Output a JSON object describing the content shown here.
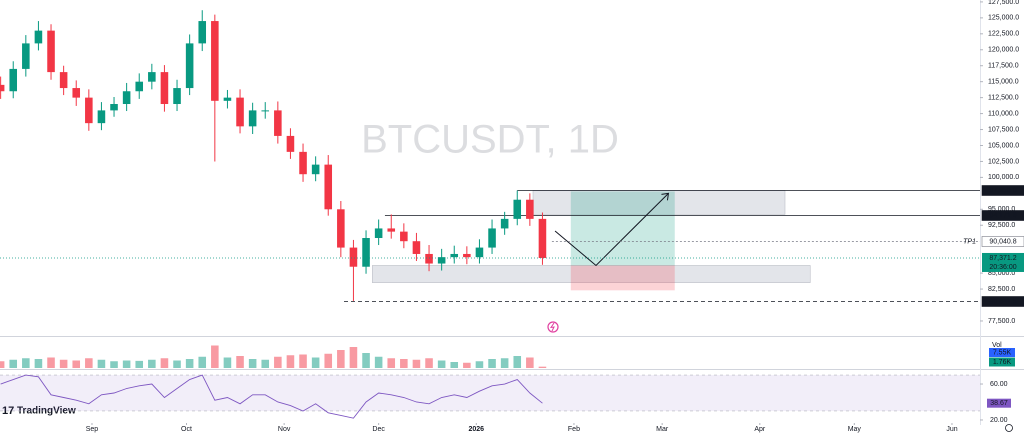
{
  "chart_data": {
    "type": "candlestick",
    "title": "BTCUSDT, 1D",
    "logo": "TradingView",
    "x": [
      2,
      6,
      10,
      14,
      18,
      22,
      26,
      30,
      34,
      38,
      42,
      46,
      50,
      54,
      58,
      62,
      66,
      70,
      74,
      78,
      82,
      86,
      90,
      94,
      98,
      102,
      106,
      110,
      114,
      118,
      122,
      126,
      130,
      134,
      138,
      142,
      146,
      150,
      154,
      158,
      162,
      166,
      170,
      174
    ],
    "open": [
      114500,
      113500,
      117000,
      121000,
      123000,
      116500,
      114000,
      112500,
      108500,
      110500,
      111500,
      113500,
      115000,
      116500,
      111500,
      114000,
      121000,
      124500,
      112000,
      112500,
      108000,
      110500,
      110500,
      106500,
      104000,
      100500,
      102000,
      95000,
      89000,
      86000,
      90500,
      92000,
      91500,
      90000,
      88000,
      86500,
      87500,
      88000,
      87500,
      89000,
      92000,
      93500,
      96500,
      93500
    ],
    "high": [
      115800,
      118200,
      122300,
      124500,
      124000,
      117500,
      115200,
      113800,
      111800,
      112600,
      114800,
      116300,
      117800,
      117600,
      115300,
      122400,
      126200,
      125500,
      113700,
      113800,
      111700,
      111800,
      111900,
      107700,
      105300,
      103300,
      103500,
      96300,
      90200,
      91700,
      93400,
      94200,
      92800,
      91300,
      89400,
      88800,
      89300,
      89200,
      90300,
      93400,
      94600,
      97950,
      97500,
      94500
    ],
    "low": [
      112300,
      112400,
      115800,
      119900,
      115300,
      112900,
      111200,
      107300,
      107400,
      109500,
      110400,
      112300,
      113800,
      110300,
      110400,
      112900,
      119800,
      102500,
      110800,
      106900,
      106800,
      109200,
      105300,
      102900,
      99300,
      99400,
      94000,
      87500,
      80641.5,
      84900,
      89400,
      90400,
      88900,
      86900,
      85300,
      85400,
      86500,
      86400,
      86500,
      88000,
      91000,
      92500,
      92400,
      86300
    ],
    "close": [
      113500,
      117000,
      121000,
      123000,
      116500,
      114000,
      112500,
      108500,
      110500,
      111500,
      113500,
      115000,
      116500,
      111500,
      114000,
      121000,
      124500,
      112000,
      112500,
      108000,
      110500,
      110500,
      106500,
      104000,
      100500,
      102000,
      95000,
      89000,
      86000,
      90500,
      92000,
      91500,
      90000,
      88000,
      86500,
      87500,
      88000,
      87500,
      89000,
      92000,
      93500,
      96500,
      93500,
      87371.2
    ],
    "colors": {
      "up": "#089981",
      "down": "#f23645"
    },
    "xlim": [
      1.8,
      312.9
    ],
    "xticks": [
      {
        "value": 31,
        "label": "Sep"
      },
      {
        "value": 61,
        "label": "Oct"
      },
      {
        "value": 92,
        "label": "Nov"
      },
      {
        "value": 122,
        "label": "Dec"
      },
      {
        "value": 153,
        "label": "2026"
      },
      {
        "value": 184,
        "label": "Feb"
      },
      {
        "value": 212,
        "label": "Mar"
      },
      {
        "value": 243,
        "label": "Apr"
      },
      {
        "value": 273,
        "label": "May"
      },
      {
        "value": 304,
        "label": "Jun"
      }
    ],
    "ylim": [
      75300,
      127800
    ],
    "yticks": [
      {
        "value": 127500,
        "label": "127,500.0"
      },
      {
        "value": 125000,
        "label": "125,000.0"
      },
      {
        "value": 122500,
        "label": "122,500.0"
      },
      {
        "value": 120000,
        "label": "120,000.0"
      },
      {
        "value": 117500,
        "label": "117,500.0"
      },
      {
        "value": 115000,
        "label": "115,000.0"
      },
      {
        "value": 112500,
        "label": "112,500.0"
      },
      {
        "value": 110000,
        "label": "110,000.0"
      },
      {
        "value": 107500,
        "label": "107,500.0"
      },
      {
        "value": 105000,
        "label": "105,000.0"
      },
      {
        "value": 102500,
        "label": "102,500.0"
      },
      {
        "value": 100000,
        "label": "100,000.0"
      },
      {
        "value": 95000,
        "label": "95,000.0"
      },
      {
        "value": 92500,
        "label": "92,500.0"
      },
      {
        "value": 85000,
        "label": "85,000.0"
      },
      {
        "value": 82500,
        "label": "82,500.0"
      },
      {
        "value": 77500,
        "label": "77,500.0"
      }
    ],
    "last_price": {
      "value": 87371.2,
      "label": "87,371.2",
      "countdown": "20:36:00",
      "color": "#089981"
    },
    "levels": [
      {
        "value": 97950,
        "label": "97,950.0",
        "style": "solid",
        "start": 166,
        "color": "#131722"
      },
      {
        "value": 94171.9,
        "label": "94,171.9",
        "style": "solid",
        "start": 124,
        "color": "#131722"
      },
      {
        "value": 90040.8,
        "label": "90,040.8",
        "style": "dotted",
        "start": 177,
        "name": "TP1",
        "color": "#787b86"
      },
      {
        "value": 80641.5,
        "label": "80,641.5",
        "style": "dashed",
        "start": 111,
        "color": "#131722"
      }
    ],
    "zones": [
      {
        "x": [
          171,
          251
        ],
        "y": [
          94200,
          97950
        ],
        "color": "#d1d4dc"
      },
      {
        "x": [
          120,
          259
        ],
        "y": [
          83500,
          86200
        ],
        "color": "#d1d4dc"
      }
    ],
    "position": {
      "x": [
        183,
        216
      ],
      "stop": 82300,
      "entry": 86200,
      "target": 97800
    },
    "path": {
      "x": [
        178,
        191,
        214
      ],
      "y": [
        91600,
        86200,
        97500
      ]
    },
    "volume": {
      "label": "Vol",
      "values": [
        9000,
        11000,
        13000,
        12000,
        14000,
        11000,
        10000,
        13000,
        11000,
        9000,
        10000,
        9500,
        11000,
        13000,
        10000,
        12000,
        15000,
        30000,
        14000,
        16000,
        12000,
        11000,
        15000,
        17000,
        18000,
        14000,
        19000,
        24000,
        28000,
        20000,
        15000,
        13000,
        12000,
        11000,
        13000,
        10000,
        8000,
        7000,
        9000,
        12000,
        13000,
        16000,
        14000,
        1760
      ],
      "ylim": [
        0,
        40000
      ],
      "ma": {
        "value": 7550,
        "label": "7.55K"
      },
      "last": {
        "value": 1760,
        "label": "1.76K"
      }
    },
    "rsi": {
      "values": [
        60,
        65,
        70,
        68,
        48,
        45,
        42,
        38,
        48,
        50,
        55,
        58,
        60,
        45,
        55,
        65,
        70,
        42,
        45,
        38,
        48,
        48,
        40,
        36,
        30,
        38,
        28,
        25,
        22,
        40,
        50,
        48,
        45,
        40,
        38,
        45,
        48,
        45,
        52,
        58,
        60,
        65,
        50,
        38.67
      ],
      "ylim": [
        14.4,
        75.6
      ],
      "band": [
        30,
        70
      ],
      "color": "#7e57c2",
      "yticks": [
        {
          "value": 60,
          "label": "60.00"
        },
        {
          "value": 20,
          "label": "20.00"
        }
      ],
      "last": {
        "value": 38.67,
        "label": "38.67"
      }
    }
  }
}
